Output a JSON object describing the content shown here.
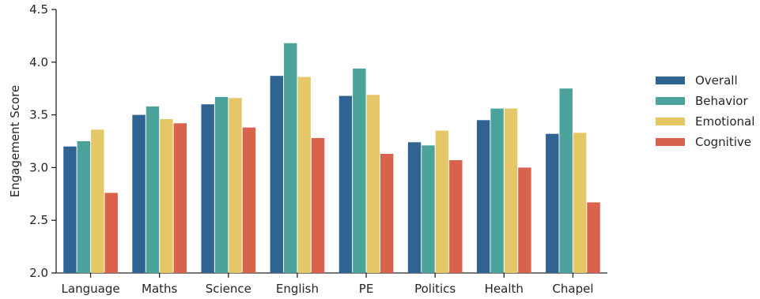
{
  "chart_data": {
    "type": "bar",
    "title": "",
    "xlabel": "",
    "ylabel": "Engagement Score",
    "ylim": [
      2.0,
      4.5
    ],
    "yticks": [
      "2.0",
      "2.5",
      "3.0",
      "3.5",
      "4.0",
      "4.5"
    ],
    "grid": false,
    "legend_position": "right",
    "categories": [
      "Language",
      "Maths",
      "Science",
      "English",
      "PE",
      "Politics",
      "Health",
      "Chapel"
    ],
    "series": [
      {
        "name": "Overall",
        "color": "#2f6391",
        "values": [
          3.2,
          3.5,
          3.6,
          3.87,
          3.68,
          3.24,
          3.45,
          3.32
        ]
      },
      {
        "name": "Behavior",
        "color": "#4ba39c",
        "values": [
          3.25,
          3.58,
          3.67,
          4.18,
          3.94,
          3.21,
          3.56,
          3.75
        ]
      },
      {
        "name": "Emotional",
        "color": "#e5c768",
        "values": [
          3.36,
          3.46,
          3.66,
          3.86,
          3.69,
          3.35,
          3.56,
          3.33
        ]
      },
      {
        "name": "Cognitive",
        "color": "#d9624c",
        "values": [
          2.76,
          3.42,
          3.38,
          3.28,
          3.13,
          3.07,
          3.0,
          2.67
        ]
      }
    ]
  }
}
